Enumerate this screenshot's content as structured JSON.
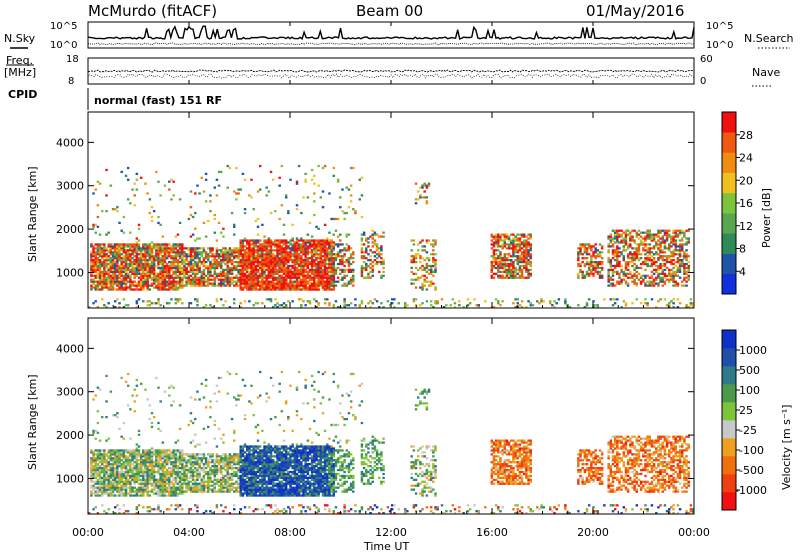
{
  "header": {
    "station": "McMurdo (fitACF)",
    "beam": "Beam 00",
    "date": "01/May/2016"
  },
  "left_labels": {
    "nsky": "N.Sky",
    "freq": "Freq.",
    "mhz": "[MHz]",
    "cpid": "CPID"
  },
  "right_labels": {
    "nsearch": "N.Search",
    "nave": "Nave"
  },
  "noise_ticks": {
    "top": "10^5",
    "bottom": "10^0"
  },
  "freq_ticks": {
    "top": "18",
    "bottom": "8"
  },
  "nave_ticks": {
    "top": "60",
    "bottom": "0"
  },
  "cpid_text": "normal (fast) 151 RF",
  "colors": {
    "power": [
      "#1030e0",
      "#1f55a8",
      "#2e8b57",
      "#5aa64f",
      "#7cc43a",
      "#f0c020",
      "#f08c10",
      "#f05a10",
      "#f01010"
    ],
    "velocity": [
      "#f01010",
      "#f04010",
      "#f07010",
      "#f0a020",
      "#c8c8c8",
      "#7cc43a",
      "#4a9a4a",
      "#2e7a8a",
      "#1f4fa8",
      "#1030c8"
    ]
  },
  "chart_data": [
    {
      "type": "heatmap",
      "name": "power",
      "ylabel": "Slant Range [km]",
      "ylim": [
        180,
        4700
      ],
      "yticks": [
        "1000",
        "2000",
        "3000",
        "4000"
      ],
      "xlim_hours": [
        0,
        24
      ],
      "colorbar_label": "Power [dB]",
      "colorbar_ticks": [
        "28",
        "24",
        "20",
        "16",
        "12",
        "8",
        "4"
      ],
      "colorbar_range": [
        0,
        32
      ]
    },
    {
      "type": "heatmap",
      "name": "velocity",
      "ylabel": "Slant Range [km]",
      "ylim": [
        180,
        4700
      ],
      "yticks": [
        "1000",
        "2000",
        "3000",
        "4000"
      ],
      "xlabel": "Time UT",
      "xticks": [
        "00:00",
        "04:00",
        "08:00",
        "12:00",
        "16:00",
        "20:00",
        "00:00"
      ],
      "colorbar_label": "Velocity [m s⁻¹]",
      "colorbar_ticks": [
        "1000",
        "500",
        "100",
        "25",
        "-25",
        "-100",
        "-500",
        "-1000"
      ]
    }
  ]
}
